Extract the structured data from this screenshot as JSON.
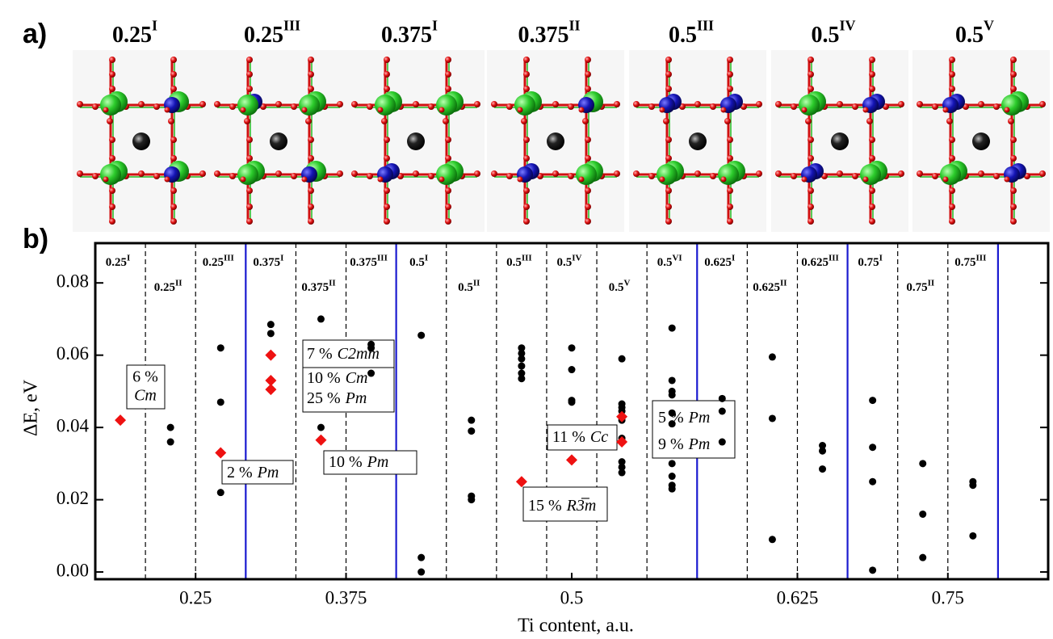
{
  "panel_a": {
    "label": "a)",
    "structures": [
      {
        "base": "0.25",
        "sup": "I"
      },
      {
        "base": "0.25",
        "sup": "III"
      },
      {
        "base": "0.375",
        "sup": "I"
      },
      {
        "base": "0.375",
        "sup": "II"
      },
      {
        "base": "0.5",
        "sup": "III"
      },
      {
        "base": "0.5",
        "sup": "IV"
      },
      {
        "base": "0.5",
        "sup": "V"
      }
    ]
  },
  "chart_data": {
    "type": "scatter",
    "panel_label": "b)",
    "xlabel": "Ti content, a.u.",
    "ylabel": "ΔE, eV",
    "column_labels": [
      {
        "base": "0.25",
        "sup": "I"
      },
      {
        "base": "0.25",
        "sup": "II"
      },
      {
        "base": "0.25",
        "sup": "III"
      },
      {
        "base": "0.375",
        "sup": "I"
      },
      {
        "base": "0.375",
        "sup": "II"
      },
      {
        "base": "0.375",
        "sup": "III"
      },
      {
        "base": "0.5",
        "sup": "I"
      },
      {
        "base": "0.5",
        "sup": "II"
      },
      {
        "base": "0.5",
        "sup": "III"
      },
      {
        "base": "0.5",
        "sup": "IV"
      },
      {
        "base": "0.5",
        "sup": "V"
      },
      {
        "base": "0.5",
        "sup": "VI"
      },
      {
        "base": "0.625",
        "sup": "I"
      },
      {
        "base": "0.625",
        "sup": "II"
      },
      {
        "base": "0.625",
        "sup": "III"
      },
      {
        "base": "0.75",
        "sup": "I"
      },
      {
        "base": "0.75",
        "sup": "II"
      },
      {
        "base": "0.75",
        "sup": "III"
      }
    ],
    "xlim": [
      -0.5,
      18.5
    ],
    "xticks": [
      {
        "value": 1.5,
        "label": "0.25"
      },
      {
        "value": 4.5,
        "label": "0.375"
      },
      {
        "value": 9,
        "label": "0.5"
      },
      {
        "value": 13.5,
        "label": "0.625"
      },
      {
        "value": 16.5,
        "label": "0.75"
      }
    ],
    "ylim": [
      -0.002,
      0.091
    ],
    "yticks": [
      {
        "value": 0,
        "label": "0.00"
      },
      0.02,
      0.04,
      0.06,
      0.08
    ],
    "series": [
      {
        "color": "#000000",
        "marker": "circle",
        "x": [
          1,
          1,
          2,
          2,
          2,
          3,
          3,
          4,
          4,
          5,
          5,
          5,
          6,
          6,
          6,
          7,
          7,
          7,
          7,
          8,
          8,
          8,
          8,
          8,
          8,
          9,
          9,
          9,
          9,
          10,
          10,
          10,
          10,
          10,
          10,
          10,
          10,
          10,
          11,
          11,
          11,
          11,
          11,
          11,
          11,
          11,
          11,
          11,
          12,
          12,
          12,
          13,
          13,
          13,
          14,
          14,
          14,
          15,
          15,
          15,
          15,
          16,
          16,
          16,
          17,
          17,
          17
        ],
        "y": [
          0.04,
          0.036,
          0.062,
          0.047,
          0.022,
          0.0685,
          0.066,
          0.07,
          0.04,
          0.063,
          0.062,
          0.055,
          0.0655,
          0.004,
          0.0,
          0.042,
          0.039,
          0.021,
          0.02,
          0.062,
          0.0605,
          0.059,
          0.057,
          0.055,
          0.0535,
          0.062,
          0.056,
          0.0475,
          0.047,
          0.059,
          0.0465,
          0.0455,
          0.0445,
          0.042,
          0.037,
          0.0305,
          0.029,
          0.0275,
          0.0675,
          0.053,
          0.05,
          0.049,
          0.044,
          0.041,
          0.03,
          0.0265,
          0.024,
          0.023,
          0.048,
          0.0445,
          0.036,
          0.0595,
          0.0425,
          0.009,
          0.035,
          0.0335,
          0.0285,
          0.0475,
          0.0345,
          0.025,
          0.0005,
          0.03,
          0.016,
          0.004,
          0.025,
          0.024,
          0.01
        ]
      },
      {
        "color": "#ee1111",
        "marker": "diamond",
        "x": [
          0,
          2,
          3,
          3,
          3,
          4,
          8,
          9,
          10,
          10
        ],
        "y": [
          0.042,
          0.033,
          0.06,
          0.053,
          0.0505,
          0.0365,
          0.025,
          0.031,
          0.043,
          0.036
        ]
      }
    ],
    "annotations": [
      {
        "pct": "6 %",
        "phase": "Cm"
      },
      {
        "pct": "2 %",
        "phase": "Pm"
      },
      {
        "pct": "7 %",
        "phase": "C2mm"
      },
      {
        "pct": "10 %",
        "phase": "Cm"
      },
      {
        "pct": "25 %",
        "phase": "Pm"
      },
      {
        "pct": "10 %",
        "phase": "Pm"
      },
      {
        "pct": "15 %",
        "phase": "R3̅m"
      },
      {
        "pct": "11 %",
        "phase": "Cc"
      },
      {
        "pct": "5 %",
        "phase": "Pm"
      },
      {
        "pct": "9 %",
        "phase": "Pm"
      }
    ]
  }
}
